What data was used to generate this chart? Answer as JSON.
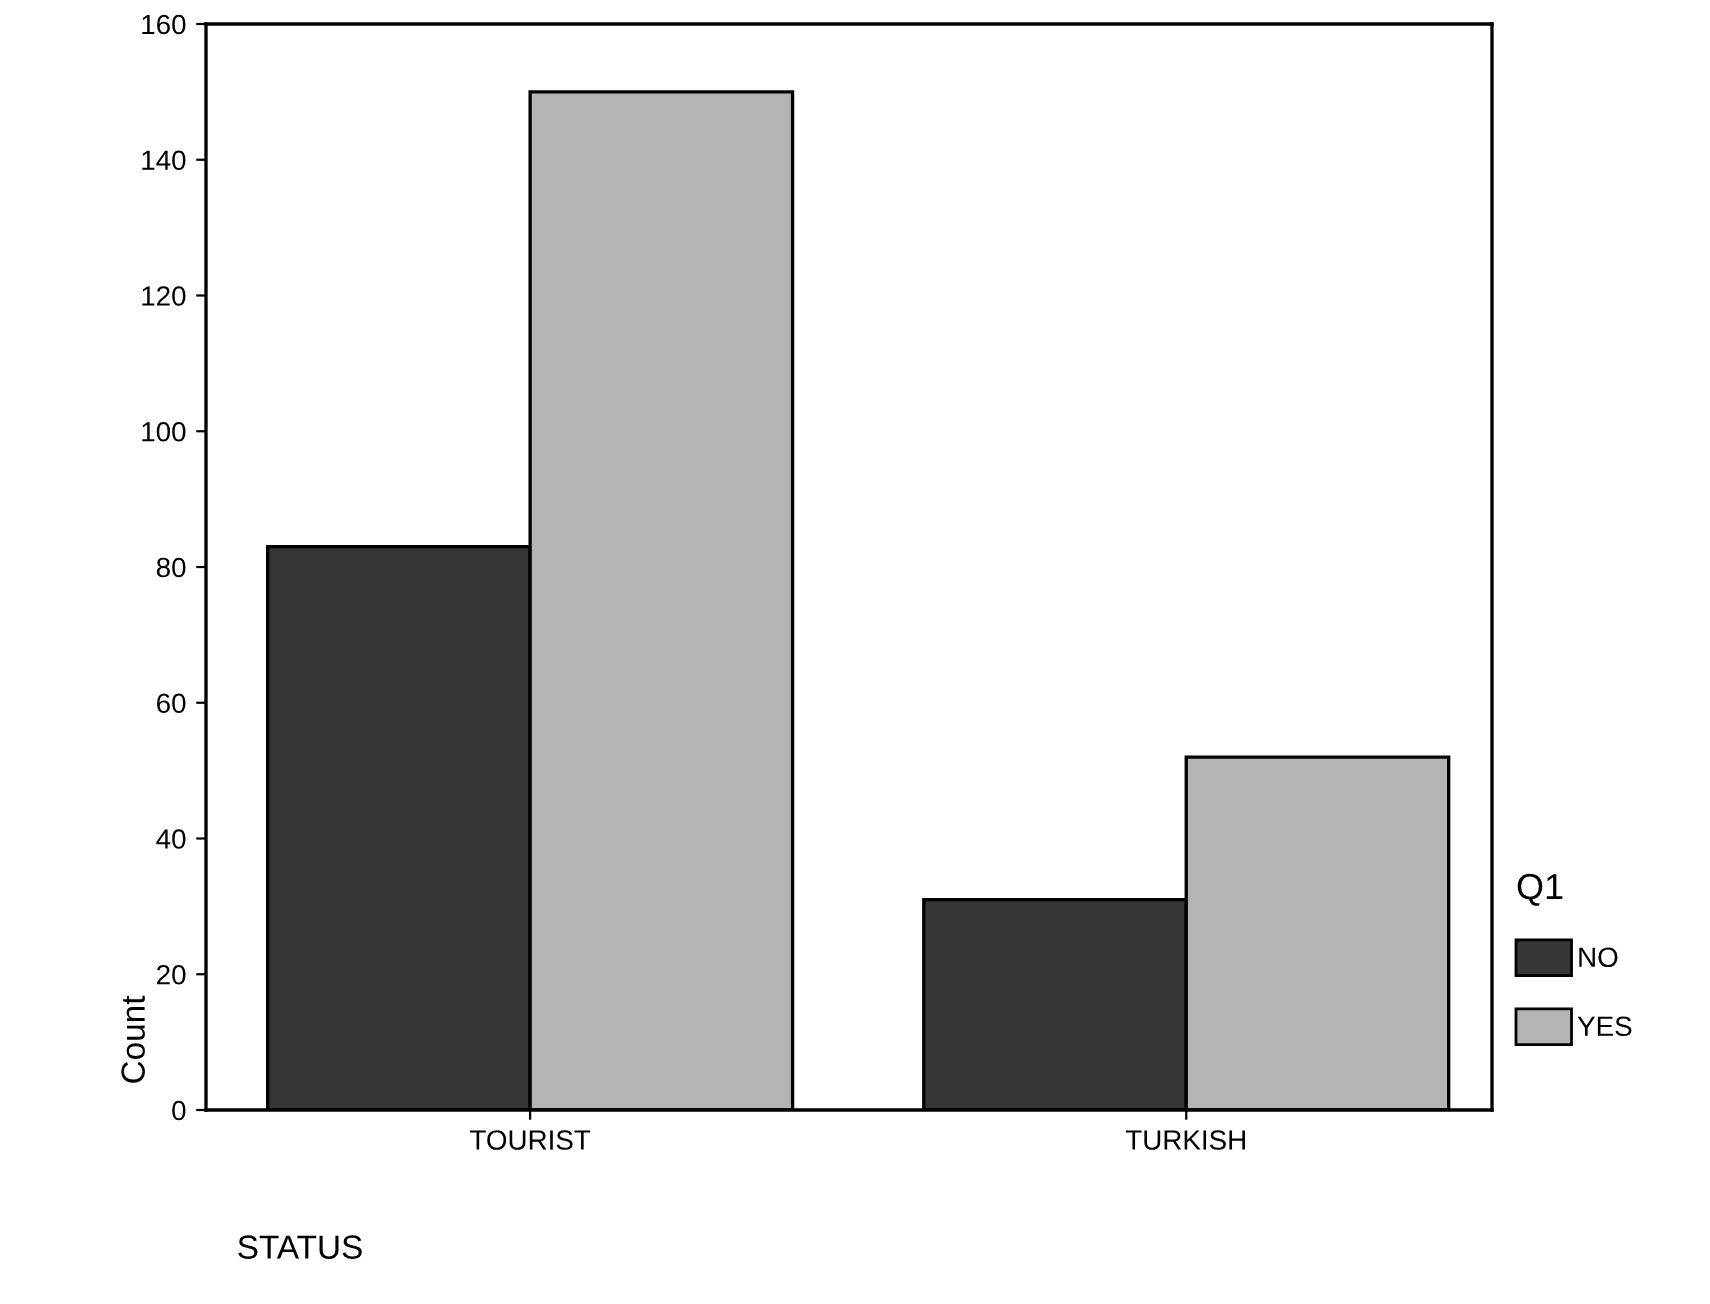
{
  "chart_data": {
    "type": "bar",
    "categories": [
      "TOURIST",
      "TURKISH"
    ],
    "series": [
      {
        "name": "NO",
        "color": "#363636",
        "values": [
          83,
          31
        ]
      },
      {
        "name": "YES",
        "color": "#b4b4b4",
        "values": [
          150,
          52
        ]
      }
    ],
    "xlabel": "STATUS",
    "ylabel": "Count",
    "legend_title": "Q1",
    "legend": "right",
    "ylim": [
      0,
      160
    ],
    "yticks": [
      0,
      20,
      40,
      60,
      80,
      100,
      120,
      140,
      160
    ],
    "grid": false
  }
}
